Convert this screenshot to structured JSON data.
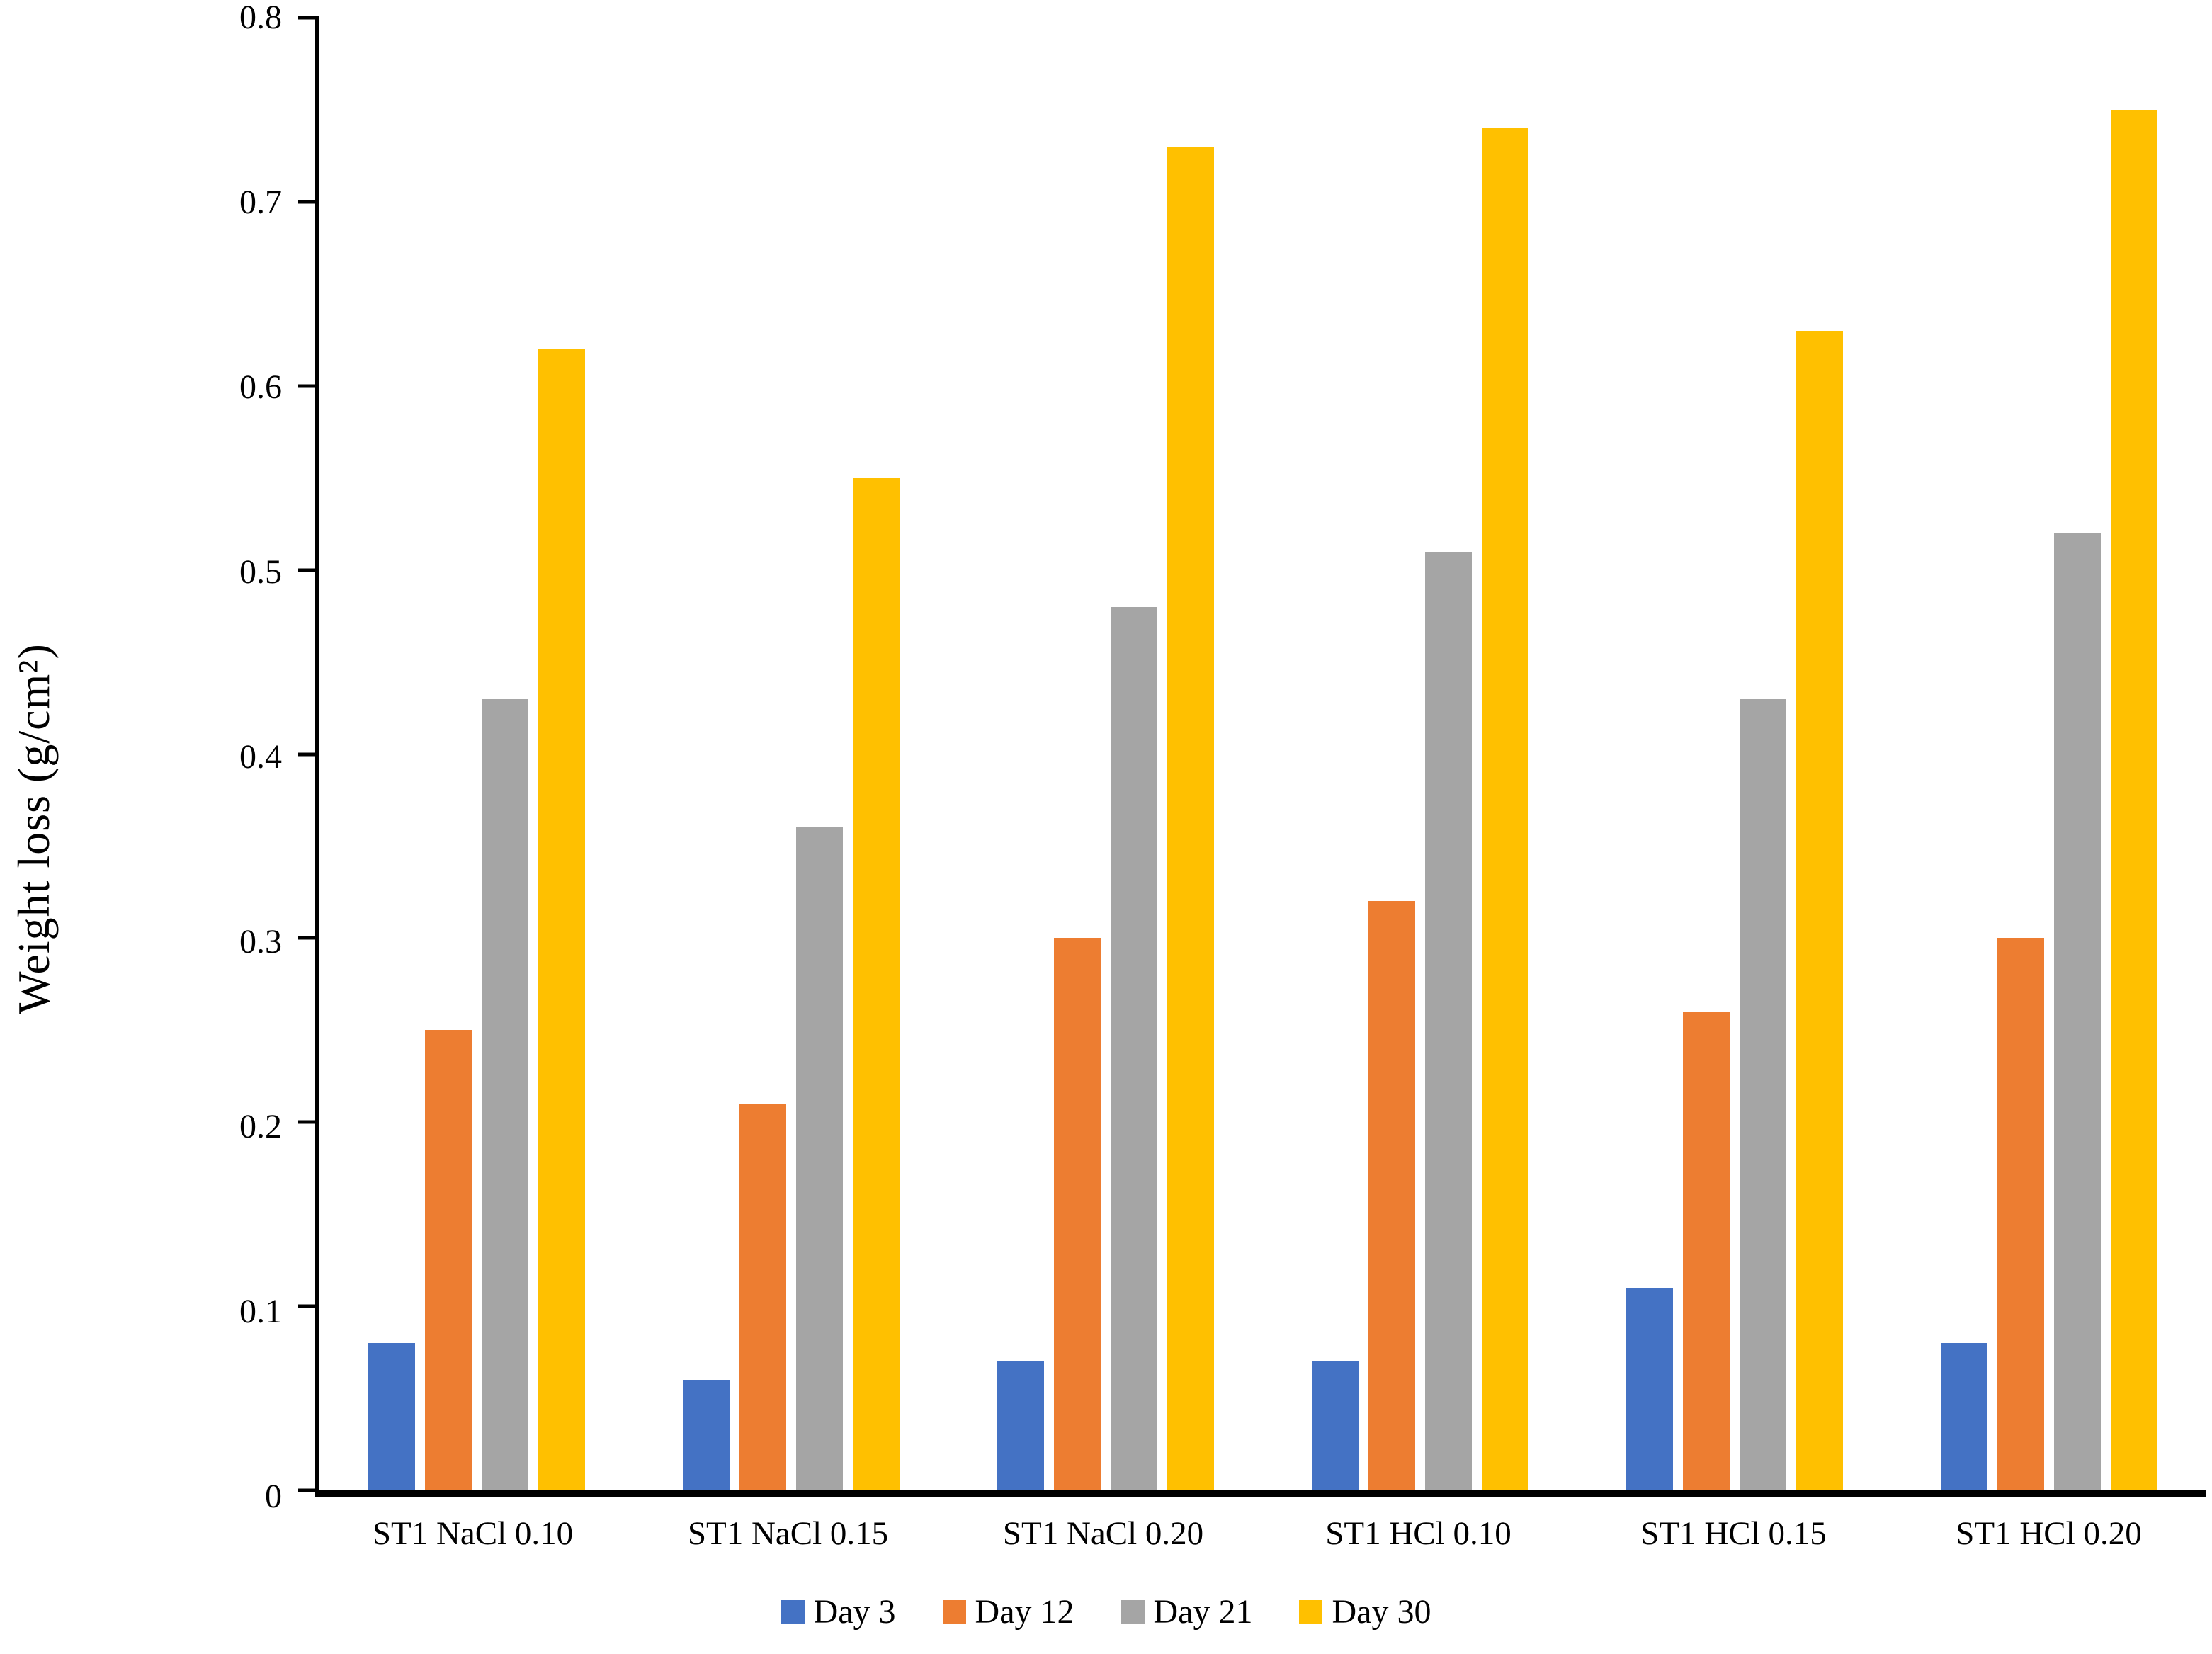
{
  "chart_data": {
    "type": "bar",
    "title": "",
    "xlabel": "",
    "ylabel": "Weight loss (g/cm²)",
    "ylim": [
      0,
      0.8
    ],
    "yticks": [
      0,
      0.1,
      0.2,
      0.3,
      0.4,
      0.5,
      0.6,
      0.7,
      0.8
    ],
    "ytick_labels": [
      "0",
      "0.1",
      "0.2",
      "0.3",
      "0.4",
      "0.5",
      "0.6",
      "0.7",
      "0.8"
    ],
    "grid": false,
    "legend_position": "bottom",
    "categories": [
      "ST1 NaCl 0.10",
      "ST1 NaCl 0.15",
      "ST1 NaCl 0.20",
      "ST1 HCl 0.10",
      "ST1 HCl 0.15",
      "ST1 HCl 0.20"
    ],
    "series": [
      {
        "name": "Day 3",
        "color": "#4472C4",
        "values": [
          0.08,
          0.06,
          0.07,
          0.07,
          0.11,
          0.08
        ]
      },
      {
        "name": "Day 12",
        "color": "#ED7D31",
        "values": [
          0.25,
          0.21,
          0.3,
          0.32,
          0.26,
          0.3
        ]
      },
      {
        "name": "Day 21",
        "color": "#A5A5A5",
        "values": [
          0.43,
          0.36,
          0.48,
          0.51,
          0.43,
          0.52
        ]
      },
      {
        "name": "Day 30",
        "color": "#FFC000",
        "values": [
          0.62,
          0.55,
          0.73,
          0.74,
          0.63,
          0.75
        ]
      }
    ]
  }
}
